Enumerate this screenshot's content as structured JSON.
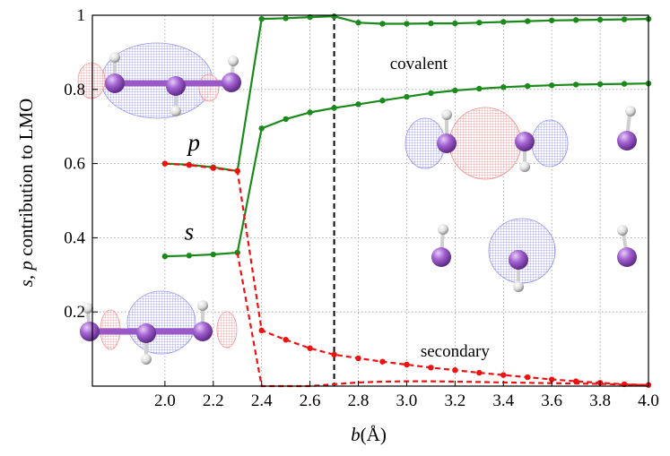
{
  "chart_data": {
    "type": "line",
    "xlabel_symbol": "b",
    "xlabel_unit": "(Å)",
    "ylabel_symbols": "s, p",
    "ylabel_text": " contribution to LMO",
    "xlim": [
      1.7,
      4.0
    ],
    "ylim": [
      0.0,
      1.0
    ],
    "x_ticks": [
      "2.0",
      "2.2",
      "2.4",
      "2.6",
      "2.8",
      "3.0",
      "3.2",
      "3.4",
      "3.6",
      "3.8",
      "4.0"
    ],
    "x_tick_values": [
      2.0,
      2.2,
      2.4,
      2.6,
      2.8,
      3.0,
      3.2,
      3.4,
      3.6,
      3.8,
      4.0
    ],
    "y_ticks": [
      "0.2",
      "0.4",
      "0.6",
      "0.8",
      "1"
    ],
    "y_tick_values": [
      0.2,
      0.4,
      0.6,
      0.8,
      1.0
    ],
    "grid": true,
    "vertical_marker_x": 2.7,
    "series": [
      {
        "key": "p",
        "color": "#1a8a1a",
        "dashed": false,
        "markers": true,
        "x": [
          2.0,
          2.1,
          2.2,
          2.3,
          2.4,
          2.5,
          2.6,
          2.7,
          2.8,
          2.9,
          3.0,
          3.1,
          3.2,
          3.3,
          3.4,
          3.5,
          3.6,
          3.7,
          3.8,
          3.9,
          4.0
        ],
        "y": [
          0.6,
          0.597,
          0.59,
          0.58,
          0.99,
          0.992,
          0.995,
          0.997,
          0.98,
          0.977,
          0.977,
          0.978,
          0.978,
          0.98,
          0.982,
          0.984,
          0.986,
          0.987,
          0.988,
          0.989,
          0.99
        ]
      },
      {
        "key": "s",
        "color": "#1a8a1a",
        "dashed": false,
        "markers": true,
        "x": [
          2.0,
          2.1,
          2.2,
          2.3,
          2.4,
          2.5,
          2.6,
          2.7,
          2.8,
          2.9,
          3.0,
          3.1,
          3.2,
          3.3,
          3.4,
          3.5,
          3.6,
          3.7,
          3.8,
          3.9,
          4.0
        ],
        "y": [
          0.35,
          0.352,
          0.355,
          0.36,
          0.695,
          0.72,
          0.738,
          0.75,
          0.76,
          0.77,
          0.78,
          0.79,
          0.797,
          0.802,
          0.806,
          0.809,
          0.811,
          0.813,
          0.814,
          0.815,
          0.816
        ]
      },
      {
        "key": "p_secondary",
        "color": "#ee1111",
        "dashed": true,
        "markers": true,
        "x": [
          2.0,
          2.1,
          2.2,
          2.3,
          2.4,
          2.5,
          2.6,
          2.7,
          2.8,
          2.9,
          3.0,
          3.1,
          3.2,
          3.3,
          3.4,
          3.5,
          3.6,
          3.7,
          3.8,
          3.9,
          4.0
        ],
        "y": [
          0.6,
          0.596,
          0.588,
          0.58,
          0.15,
          0.125,
          0.102,
          0.085,
          0.075,
          0.066,
          0.058,
          0.05,
          0.043,
          0.036,
          0.03,
          0.024,
          0.018,
          0.013,
          0.009,
          0.005,
          0.003
        ]
      },
      {
        "key": "s_secondary",
        "color": "#ee1111",
        "dashed": true,
        "markers": false,
        "x": [
          2.3,
          2.4,
          2.5,
          2.6,
          2.7,
          2.8,
          2.9,
          3.0,
          3.1,
          3.2,
          3.3,
          3.4,
          3.5,
          3.6,
          3.7,
          3.8,
          3.9,
          4.0
        ],
        "y": [
          0.36,
          0.0,
          0.0,
          0.0,
          0.005,
          0.01,
          0.012,
          0.013,
          0.013,
          0.012,
          0.011,
          0.01,
          0.009,
          0.008,
          0.007,
          0.006,
          0.004,
          0.003
        ]
      }
    ],
    "annotations": [
      {
        "key": "covalent",
        "text": "covalent",
        "x": 3.05,
        "y": 0.855,
        "italic": false
      },
      {
        "key": "secondary",
        "text": "secondary",
        "x": 3.2,
        "y": 0.08,
        "italic": false
      },
      {
        "key": "p_label",
        "text": "p",
        "x": 2.12,
        "y": 0.635,
        "italic": true
      },
      {
        "key": "s_label",
        "text": "s",
        "x": 2.1,
        "y": 0.395,
        "italic": true
      }
    ],
    "colors": {
      "atom": "#9b59c8",
      "atom_highlight": "#e0c2f5",
      "hydrogen": "#e6e6e6",
      "positive_lobe": "#6f6ff0",
      "negative_lobe": "#ef6c6c",
      "grid": "#999999",
      "marker_line": "#000000"
    }
  }
}
